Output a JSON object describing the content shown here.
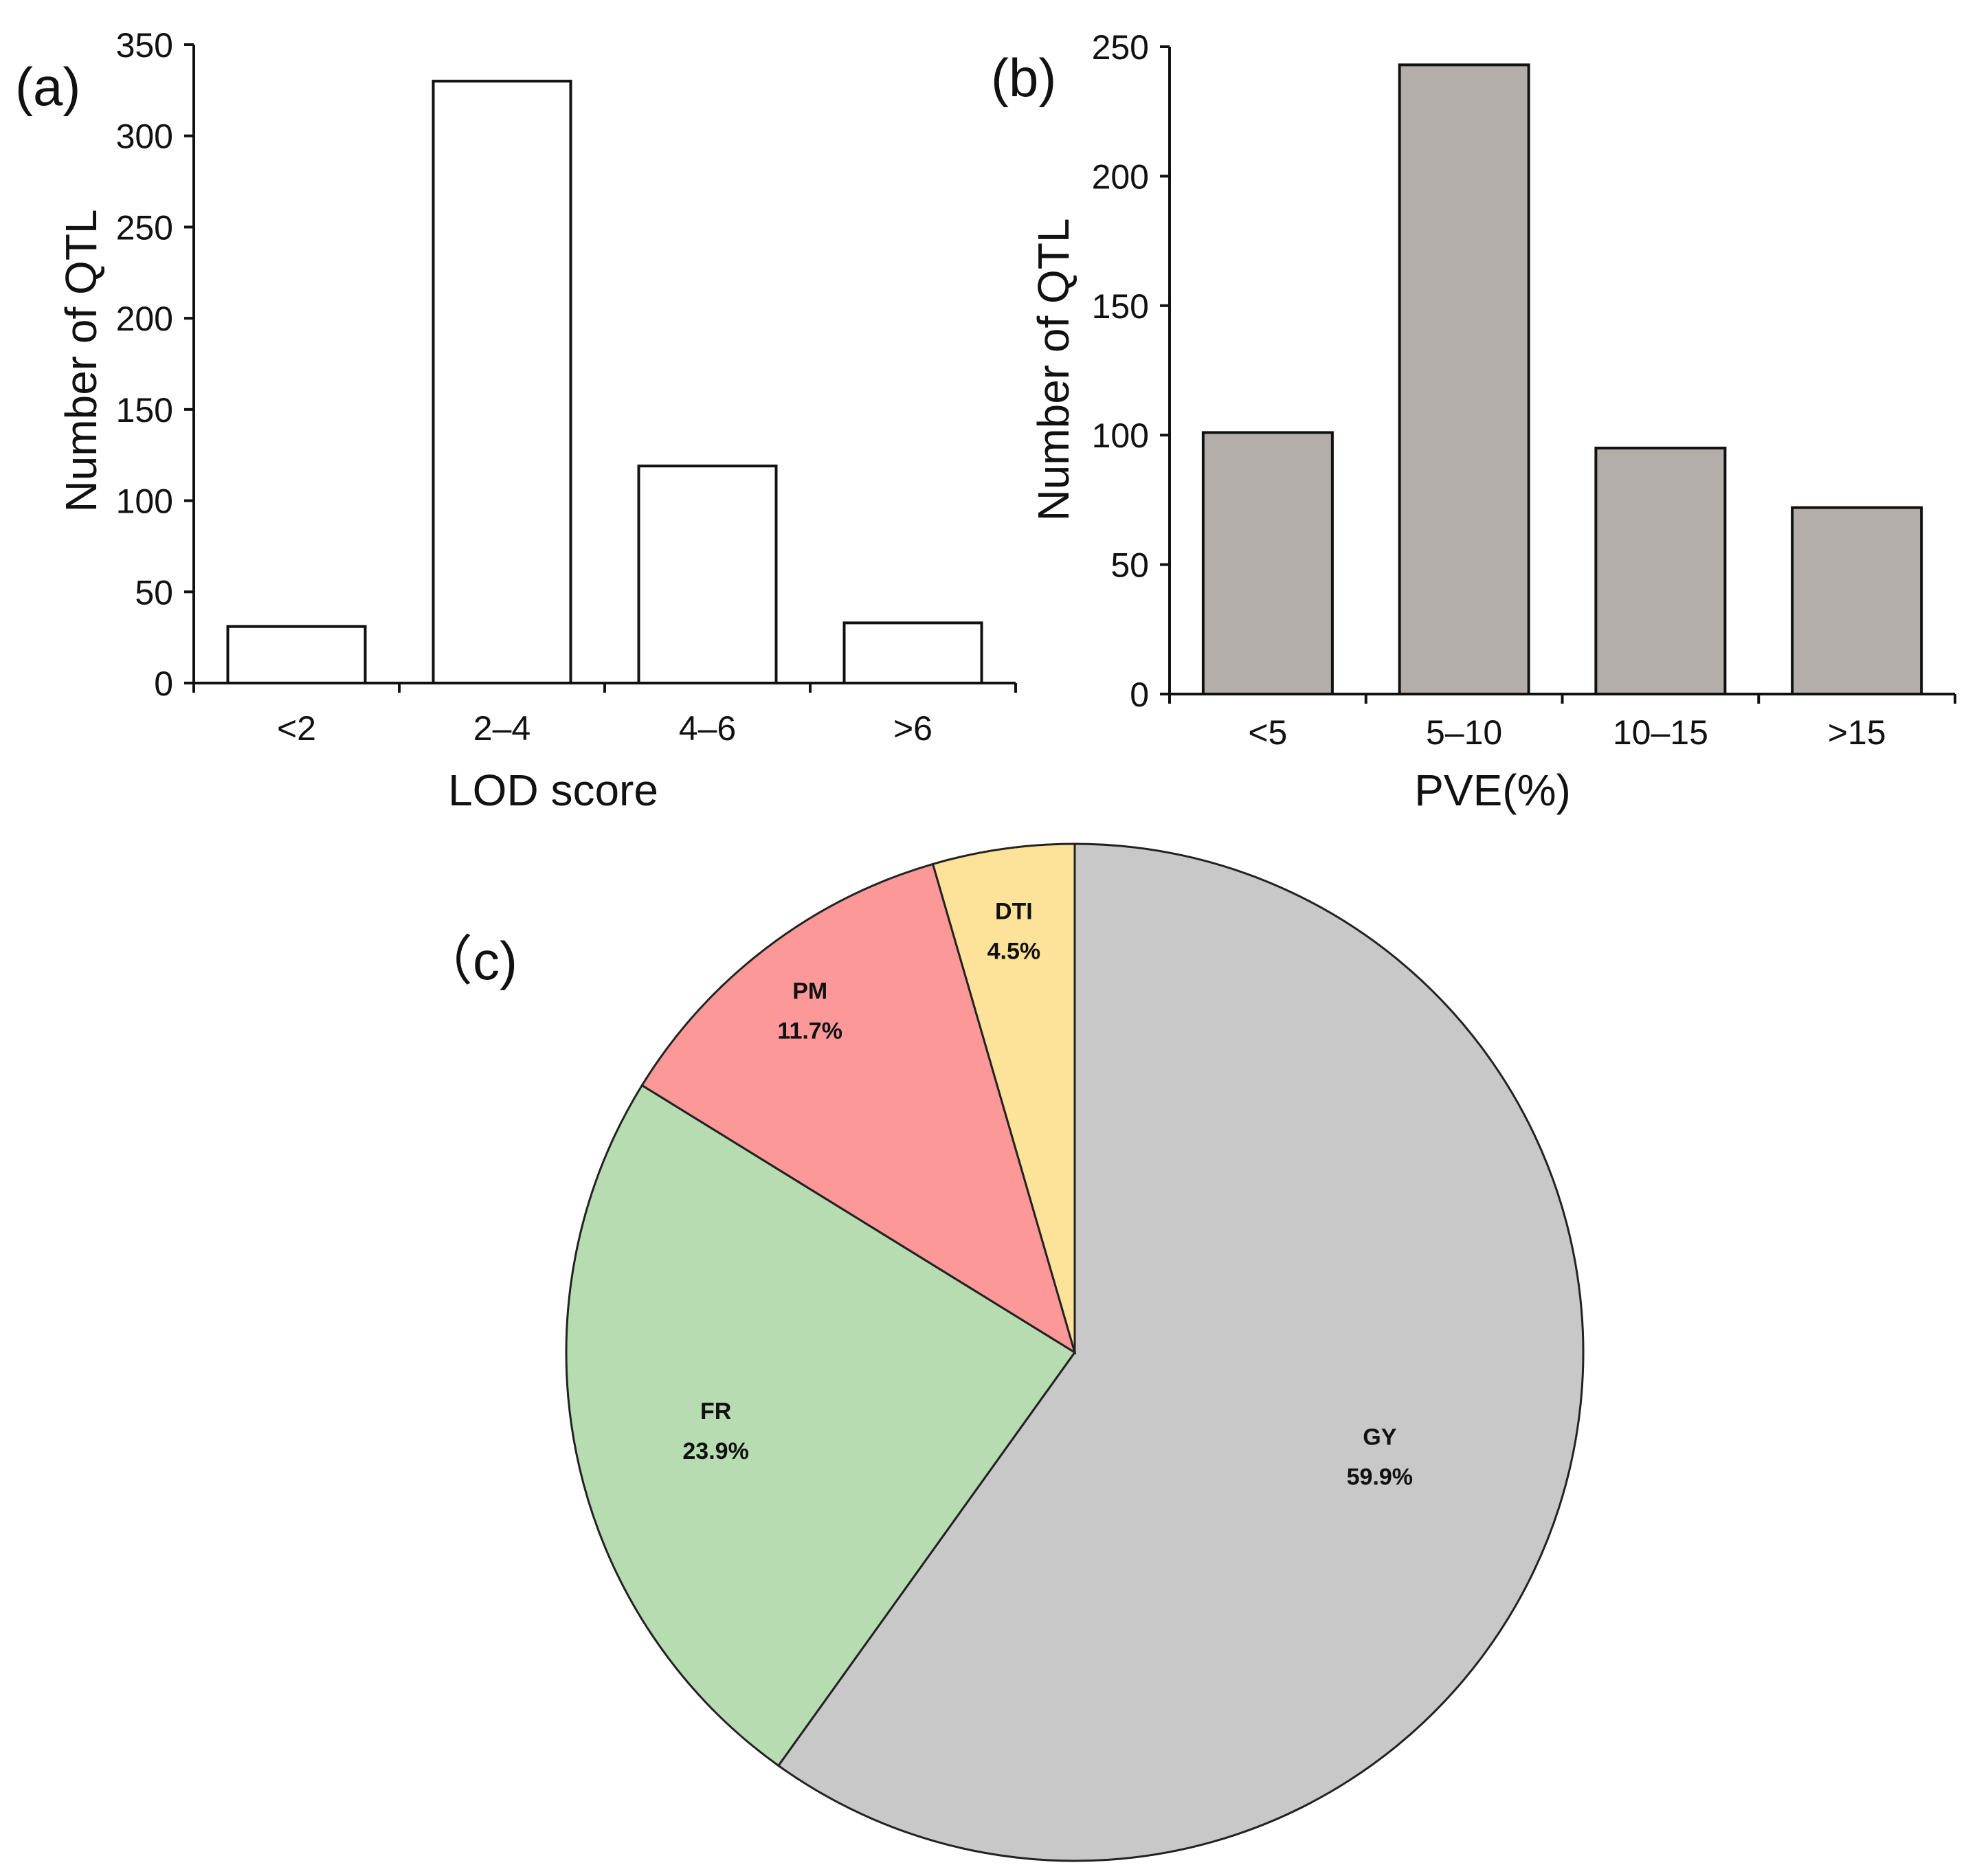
{
  "chart_data": [
    {
      "id": "a",
      "panel_label": "(a)",
      "type": "bar",
      "categories": [
        "<2",
        "2–4",
        "4–6",
        ">6"
      ],
      "values": [
        31,
        330,
        119,
        33
      ],
      "xlabel": "LOD score",
      "ylabel": "Number of QTL",
      "ylim": [
        0,
        350
      ],
      "yticks": [
        "0",
        "50",
        "100",
        "150",
        "200",
        "250",
        "300",
        "350"
      ],
      "bar_color": "#ffffff",
      "grid": false
    },
    {
      "id": "b",
      "panel_label": "(b)",
      "type": "bar",
      "categories": [
        "<5",
        "5–10",
        "10–15",
        ">15"
      ],
      "values": [
        101,
        243,
        95,
        72
      ],
      "xlabel": "PVE(%)",
      "ylabel": "Number of QTL",
      "ylim": [
        0,
        250
      ],
      "yticks": [
        "0",
        "50",
        "100",
        "150",
        "200",
        "250"
      ],
      "bar_color": "#b3aeaa",
      "grid": false
    },
    {
      "id": "c",
      "panel_label": "（c)",
      "type": "pie",
      "slices": [
        {
          "label": "GY",
          "value": 59.9,
          "text": "59.9%",
          "color": "#c8c8c8"
        },
        {
          "label": "FR",
          "value": 23.9,
          "text": "23.9%",
          "color": "#b7dcb1"
        },
        {
          "label": "PM",
          "value": 11.7,
          "text": "11.7%",
          "color": "#fc9898"
        },
        {
          "label": "DTI",
          "value": 4.5,
          "text": "4.5%",
          "color": "#fce399"
        }
      ],
      "start": "12 o'clock",
      "direction": "clockwise"
    }
  ]
}
